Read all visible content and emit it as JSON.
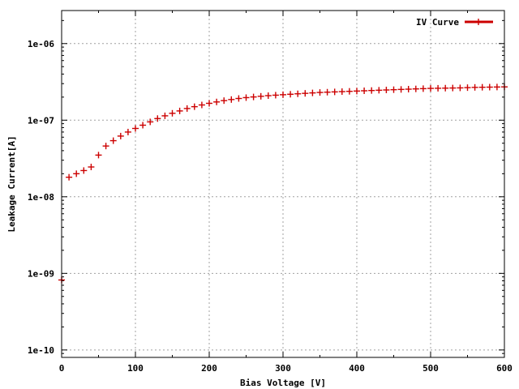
{
  "chart_data": {
    "type": "scatter",
    "title": "",
    "xlabel": "Bias Voltage [V]",
    "ylabel": "Leakage Current[A]",
    "xlim": [
      0,
      600
    ],
    "ylim": [
      8e-11,
      2.7e-06
    ],
    "y_scale": "log",
    "grid": true,
    "legend_position": "top-right",
    "x_ticks": [
      0,
      100,
      200,
      300,
      400,
      500,
      600
    ],
    "x_tick_labels": [
      "0",
      "100",
      "200",
      "300",
      "400",
      "500",
      "600"
    ],
    "y_ticks": [
      1e-10,
      1e-09,
      1e-08,
      1e-07,
      1e-06
    ],
    "y_tick_labels": [
      "1e-10",
      "1e-09",
      "1e-08",
      "1e-07",
      "1e-06"
    ],
    "series": [
      {
        "name": "IV Curve",
        "color": "#cc0000",
        "marker": "plus",
        "x": [
          0,
          10,
          20,
          30,
          40,
          50,
          60,
          70,
          80,
          90,
          100,
          110,
          120,
          130,
          140,
          150,
          160,
          170,
          180,
          190,
          200,
          210,
          220,
          230,
          240,
          250,
          260,
          270,
          280,
          290,
          300,
          310,
          320,
          330,
          340,
          350,
          360,
          370,
          380,
          390,
          400,
          410,
          420,
          430,
          440,
          450,
          460,
          470,
          480,
          490,
          500,
          510,
          520,
          530,
          540,
          550,
          560,
          570,
          580,
          590,
          600
        ],
        "y": [
          8.2e-10,
          1.8e-08,
          2e-08,
          2.2e-08,
          2.45e-08,
          3.5e-08,
          4.6e-08,
          5.4e-08,
          6.2e-08,
          7e-08,
          7.8e-08,
          8.6e-08,
          9.5e-08,
          1.05e-07,
          1.14e-07,
          1.23e-07,
          1.32e-07,
          1.42e-07,
          1.5e-07,
          1.58e-07,
          1.66e-07,
          1.73e-07,
          1.8e-07,
          1.86e-07,
          1.92e-07,
          1.97e-07,
          2.01e-07,
          2.05e-07,
          2.09e-07,
          2.12e-07,
          2.15e-07,
          2.18e-07,
          2.21e-07,
          2.24e-07,
          2.27e-07,
          2.3e-07,
          2.32e-07,
          2.34e-07,
          2.36e-07,
          2.38e-07,
          2.4e-07,
          2.42e-07,
          2.44e-07,
          2.46e-07,
          2.48e-07,
          2.5e-07,
          2.52e-07,
          2.54e-07,
          2.56e-07,
          2.58e-07,
          2.6e-07,
          2.61e-07,
          2.62e-07,
          2.63e-07,
          2.64e-07,
          2.66e-07,
          2.68e-07,
          2.69e-07,
          2.7e-07,
          2.71e-07,
          2.72e-07
        ]
      }
    ]
  }
}
